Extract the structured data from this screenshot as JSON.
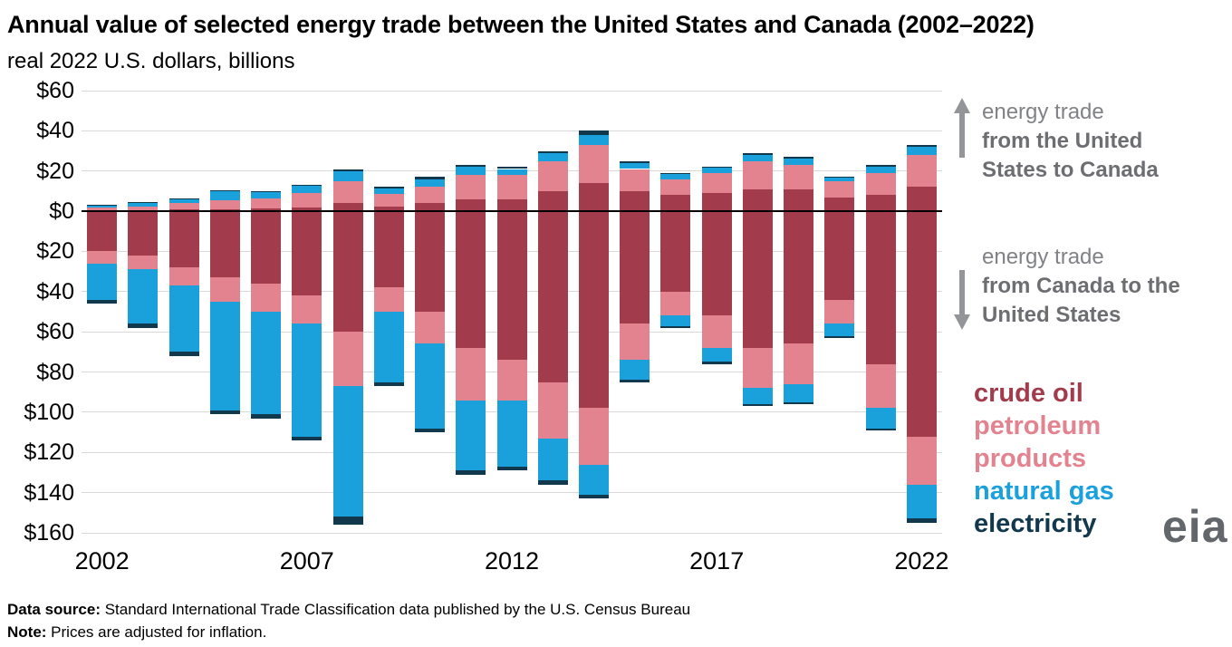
{
  "title": "Annual value of selected energy trade between the United States and Canada (2002–2022)",
  "subtitle": "real 2022 U.S. dollars, billions",
  "annotations": {
    "up": {
      "line1": "energy trade",
      "line2": "from the United States to Canada"
    },
    "down": {
      "line1": "energy trade",
      "line2": "from Canada to the United States"
    }
  },
  "legend": [
    {
      "label": "crude oil",
      "color": "#a23b4c"
    },
    {
      "label": "petroleum products",
      "color": "#e2838f"
    },
    {
      "label": "natural gas",
      "color": "#1aa1dc"
    },
    {
      "label": "electricity",
      "color": "#12384e"
    }
  ],
  "logo": "eia",
  "footer": {
    "source_label": "Data source:",
    "source_text": " Standard International Trade Classification data published by the U.S. Census Bureau",
    "note_label": "Note:",
    "note_text": " Prices are adjusted for inflation."
  },
  "chart_data": {
    "type": "bar",
    "stacked": true,
    "diverging": true,
    "title": "Annual value of selected energy trade between the United States and Canada (2002–2022)",
    "units": "real 2022 U.S. dollars, billions",
    "y_max": 60,
    "y_min": -160,
    "grid": true,
    "y_ticks": [
      {
        "value": 60,
        "label": "$60"
      },
      {
        "value": 40,
        "label": "$40"
      },
      {
        "value": 20,
        "label": "$20"
      },
      {
        "value": 0,
        "label": "$0"
      },
      {
        "value": -20,
        "label": "$20"
      },
      {
        "value": -40,
        "label": "$40"
      },
      {
        "value": -60,
        "label": "$60"
      },
      {
        "value": -80,
        "label": "$80"
      },
      {
        "value": -100,
        "label": "$100"
      },
      {
        "value": -120,
        "label": "$120"
      },
      {
        "value": -140,
        "label": "$140"
      },
      {
        "value": -160,
        "label": "$160"
      }
    ],
    "years": [
      2002,
      2003,
      2004,
      2005,
      2006,
      2007,
      2008,
      2009,
      2010,
      2011,
      2012,
      2013,
      2014,
      2015,
      2016,
      2017,
      2018,
      2019,
      2020,
      2021,
      2022
    ],
    "x_ticks": [
      2002,
      2007,
      2012,
      2017,
      2022
    ],
    "direction_up_label": "energy trade from the United States to Canada",
    "direction_down_label": "energy trade from Canada to the United States",
    "series_up": [
      {
        "name": "crude oil",
        "color": "#a23b4c",
        "values": [
          0.5,
          0.5,
          1,
          1,
          1.5,
          2,
          4,
          2.5,
          4,
          6,
          6,
          10,
          14,
          10,
          8,
          9,
          11,
          11,
          7,
          8,
          12
        ]
      },
      {
        "name": "petroleum products",
        "color": "#e2838f",
        "values": [
          1.5,
          2,
          3,
          4.5,
          5,
          7,
          11,
          6,
          8,
          12,
          12,
          15,
          19,
          11,
          8,
          10,
          14,
          12,
          8,
          11,
          16
        ]
      },
      {
        "name": "natural gas",
        "color": "#1aa1dc",
        "values": [
          0.7,
          1.5,
          2,
          4.5,
          3,
          3.5,
          5,
          3,
          4,
          4,
          3,
          4,
          5,
          3,
          2.5,
          2.5,
          3,
          3,
          1.5,
          3,
          4
        ]
      },
      {
        "name": "electricity",
        "color": "#12384e",
        "values": [
          0.3,
          0.5,
          0.5,
          0.5,
          0.5,
          0.5,
          1,
          0.5,
          1,
          1,
          1,
          1,
          2,
          1,
          0.5,
          0.5,
          1,
          1,
          0.5,
          1,
          1
        ]
      }
    ],
    "series_down": [
      {
        "name": "crude oil",
        "color": "#a23b4c",
        "values": [
          20,
          22,
          28,
          33,
          36,
          42,
          60,
          38,
          50,
          68,
          74,
          85,
          98,
          56,
          40,
          52,
          68,
          66,
          44,
          76,
          112
        ]
      },
      {
        "name": "petroleum products",
        "color": "#e2838f",
        "values": [
          6,
          7,
          9,
          12,
          14,
          14,
          27,
          12,
          16,
          26,
          20,
          28,
          28,
          18,
          12,
          16,
          20,
          20,
          12,
          22,
          24
        ]
      },
      {
        "name": "natural gas",
        "color": "#1aa1dc",
        "values": [
          18,
          27,
          33,
          54,
          51,
          56,
          65,
          35,
          42,
          35,
          33,
          21,
          15,
          10,
          5,
          7,
          8,
          9,
          6,
          10,
          17
        ]
      },
      {
        "name": "electricity",
        "color": "#12384e",
        "values": [
          2,
          2,
          2,
          2,
          2,
          2,
          4,
          2,
          2,
          2,
          2,
          2,
          2,
          1,
          1,
          1,
          1,
          1,
          1,
          1,
          2
        ]
      }
    ]
  }
}
